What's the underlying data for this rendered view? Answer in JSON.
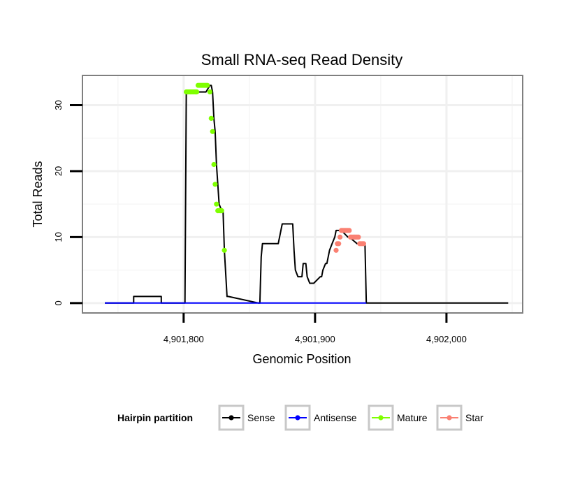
{
  "chart_data": {
    "type": "line",
    "title": "Small RNA-seq Read Density",
    "xlabel": "Genomic Position",
    "ylabel": "Total Reads",
    "xlim": [
      4901723,
      4902058
    ],
    "ylim": [
      -1.5,
      34.5
    ],
    "x_ticks": [
      4901800,
      4901900,
      4902000
    ],
    "x_tick_labels": [
      "4,901,800",
      "4,901,900",
      "4,902,000"
    ],
    "y_ticks": [
      0,
      10,
      20,
      30
    ],
    "y_tick_labels": [
      "0",
      "10",
      "20",
      "30"
    ],
    "grid": true,
    "legend": {
      "title": "Hairpin partition",
      "position": "bottom",
      "entries": [
        {
          "name": "Sense",
          "color": "#000000"
        },
        {
          "name": "Antisense",
          "color": "#0000FF"
        },
        {
          "name": "Mature",
          "color": "#7FFF00"
        },
        {
          "name": "Star",
          "color": "#FA8072"
        }
      ]
    },
    "series": [
      {
        "name": "Sense",
        "color": "#000000",
        "x": [
          4901740,
          4901762,
          4901762,
          4901783,
          4901783,
          4901801,
          4901802,
          4901817,
          4901820,
          4901821,
          4901822,
          4901823,
          4901824,
          4901825,
          4901826,
          4901827,
          4901829,
          4901830,
          4901831,
          4901833,
          4901834,
          4901857,
          4901858,
          4901859,
          4901860,
          4901872,
          4901875,
          4901883,
          4901884,
          4901885,
          4901887,
          4901890,
          4901891,
          4901893,
          4901894,
          4901896,
          4901898,
          4901899,
          4901904,
          4901905,
          4901906,
          4901908,
          4901909,
          4901910,
          4901911,
          4901913,
          4901915,
          4901916,
          4901918,
          4901920,
          4901925,
          4901926,
          4901932,
          4901933,
          4901934,
          4901938,
          4901938,
          4901939,
          4902047
        ],
        "y": [
          0,
          0,
          1,
          1,
          0,
          0,
          32,
          32,
          33,
          33,
          32,
          28,
          26,
          21,
          18,
          15,
          14,
          14,
          8,
          1,
          1,
          0,
          0,
          7,
          9,
          9,
          12,
          12,
          8,
          5,
          4,
          4,
          6,
          6,
          4,
          3,
          3,
          3,
          4,
          4,
          5,
          6,
          6,
          7,
          8,
          9,
          10,
          11,
          11,
          11,
          10,
          10,
          9,
          9,
          9,
          9,
          9,
          0,
          0
        ]
      },
      {
        "name": "Antisense",
        "color": "#0000FF",
        "x": [
          4901740,
          4901939
        ],
        "y": [
          0,
          0
        ]
      },
      {
        "name": "Mature",
        "color": "#7FFF00",
        "x": [
          4901802,
          4901803,
          4901804,
          4901805,
          4901806,
          4901807,
          4901808,
          4901809,
          4901810,
          4901811,
          4901812,
          4901813,
          4901814,
          4901815,
          4901816,
          4901817,
          4901818,
          4901820,
          4901821,
          4901822,
          4901823,
          4901824,
          4901825,
          4901826,
          4901827,
          4901828,
          4901829,
          4901831
        ],
        "y": [
          32,
          32,
          32,
          32,
          32,
          32,
          32,
          32,
          32,
          33,
          33,
          33,
          33,
          33,
          33,
          33,
          33,
          32,
          28,
          26,
          21,
          18,
          15,
          14,
          14,
          14,
          14,
          8
        ]
      },
      {
        "name": "Star",
        "color": "#FA8072",
        "x": [
          4901916,
          4901917,
          4901918,
          4901919,
          4901920,
          4901921,
          4901922,
          4901923,
          4901924,
          4901925,
          4901926,
          4901927,
          4901928,
          4901929,
          4901930,
          4901931,
          4901932,
          4901933,
          4901934,
          4901935,
          4901936,
          4901937
        ],
        "y": [
          8,
          9,
          9,
          10,
          11,
          11,
          11,
          11,
          11,
          11,
          11,
          10,
          10,
          10,
          10,
          10,
          10,
          10,
          9,
          9,
          9,
          9
        ]
      }
    ]
  }
}
